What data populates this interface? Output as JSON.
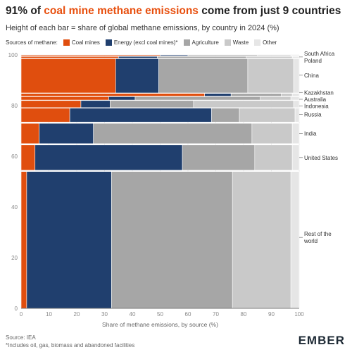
{
  "header": {
    "title_pre": "91% of ",
    "title_highlight": "coal mine methane emissions",
    "title_post": " come from just 9 countries",
    "subtitle": "Height of each bar = share of global methane emissions, by country in 2024 (%)"
  },
  "footer": {
    "source": "Source: IEA",
    "note": "*Includes oil, gas, biomass and abandoned facilities",
    "brand": "EMBER"
  },
  "colors": {
    "coal": "#e04e0e",
    "energy": "#203f6e",
    "agriculture": "#a6a6a6",
    "waste": "#c9c9c9",
    "other": "#e6e6e6",
    "highlight": "#e8500f"
  },
  "chart_data": {
    "type": "bar",
    "subtype": "marimekko",
    "title": "91% of coal mine methane emissions come from just 9 countries",
    "subtitle": "Height of each bar = share of global methane emissions, by country in 2024 (%)",
    "xlabel": "Share of methane emissions, by source (%)",
    "ylabel": "",
    "xlim": [
      0,
      100
    ],
    "ylim": [
      0,
      100
    ],
    "xticks": [
      0,
      10,
      20,
      30,
      40,
      50,
      60,
      70,
      80,
      90,
      100
    ],
    "yticks": [
      0,
      20,
      40,
      60,
      80,
      100
    ],
    "legend_title": "Sources of methane:",
    "legend_position": "top-left",
    "grid": true,
    "series": [
      {
        "name": "Coal mines",
        "key": "coal"
      },
      {
        "name": "Energy (excl coal mines)*",
        "key": "energy"
      },
      {
        "name": "Agriculture",
        "key": "agriculture"
      },
      {
        "name": "Waste",
        "key": "waste"
      },
      {
        "name": "Other",
        "key": "other"
      }
    ],
    "countries": [
      {
        "name": "Rest of the world",
        "y0": 0,
        "y1": 54,
        "values": [
          2,
          30.5,
          43.5,
          21,
          3
        ]
      },
      {
        "name": "United States",
        "y0": 54.5,
        "y1": 64.5,
        "values": [
          5,
          53,
          26,
          13.5,
          2.5
        ]
      },
      {
        "name": "India",
        "y0": 65,
        "y1": 73,
        "values": [
          6.5,
          19.5,
          57,
          14.5,
          2.5
        ]
      },
      {
        "name": "Russia",
        "y0": 73.5,
        "y1": 79,
        "values": [
          17.5,
          51,
          10,
          20,
          1.5
        ]
      },
      {
        "name": "Indonesia",
        "y0": 79.2,
        "y1": 82,
        "values": [
          21.5,
          10.5,
          30,
          36,
          2
        ]
      },
      {
        "name": "Australia",
        "y0": 82.2,
        "y1": 83.5,
        "values": [
          31.5,
          9.5,
          45,
          11,
          3
        ]
      },
      {
        "name": "Kazakhstan",
        "y0": 83.7,
        "y1": 84.8,
        "values": [
          66,
          9.5,
          18,
          4,
          2.5
        ]
      },
      {
        "name": "China",
        "y0": 85,
        "y1": 98.5,
        "values": [
          34,
          15.5,
          32,
          16.5,
          2
        ]
      },
      {
        "name": "Poland",
        "y0": 98.7,
        "y1": 99.4,
        "values": [
          35,
          14,
          32,
          16.5,
          2.5
        ]
      },
      {
        "name": "South Africa",
        "y0": 99.6,
        "y1": 100,
        "values": [
          50,
          10,
          25,
          12,
          3
        ]
      }
    ],
    "labels": [
      {
        "text": [
          "South Africa",
          "Poland"
        ],
        "y": 99.2
      },
      {
        "text": [
          "China"
        ],
        "y": 92
      },
      {
        "text": [
          "Kazakhstan"
        ],
        "y": 85.2
      },
      {
        "text": [
          "Australia"
        ],
        "y": 82.5
      },
      {
        "text": [
          "Indonesia"
        ],
        "y": 79.8
      },
      {
        "text": [
          "Russia"
        ],
        "y": 76.5
      },
      {
        "text": [
          "India"
        ],
        "y": 69
      },
      {
        "text": [
          "United States"
        ],
        "y": 59.5
      },
      {
        "text": [
          "Rest of the",
          "world"
        ],
        "y": 28
      }
    ]
  }
}
